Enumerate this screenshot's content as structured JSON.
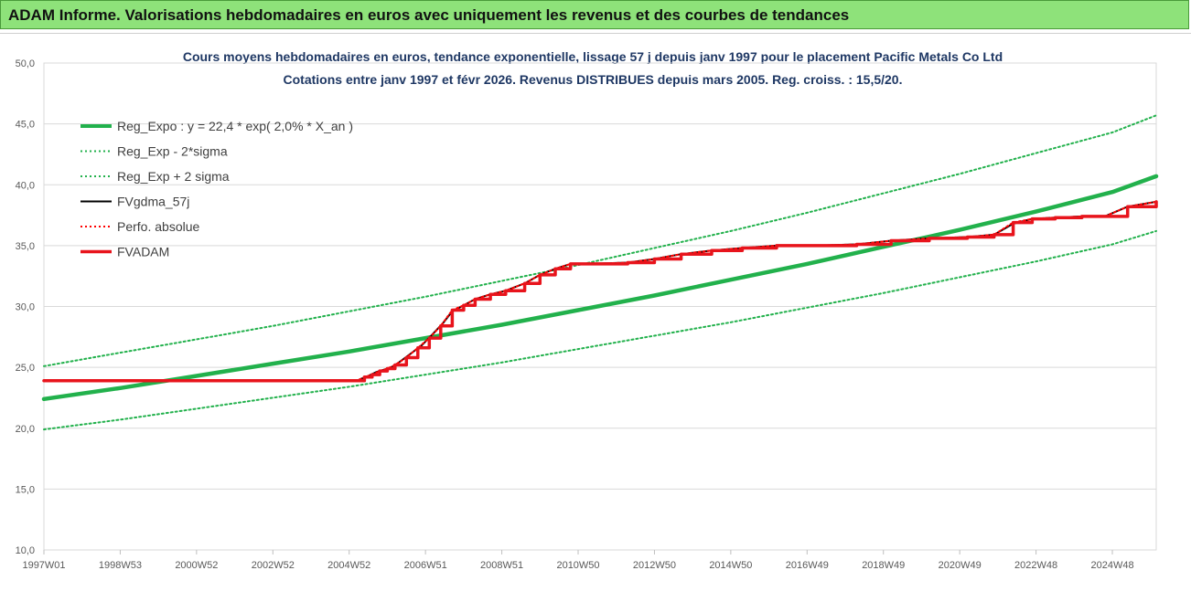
{
  "banner": {
    "title": "ADAM Informe. Valorisations hebdomadaires en euros avec uniquement les revenus et des courbes de tendances"
  },
  "chart_data": {
    "type": "line",
    "title_line1": "Cours moyens hebdomadaires en euros, tendance exponentielle, lissage 57 j depuis janv 1997 pour le placement Pacific Metals Co Ltd",
    "title_line2": "Cotations entre janv 1997 et févr 2026. Revenus DISTRIBUES depuis mars 2005. Reg. croiss. : 15,5/20.",
    "xlabel": "",
    "ylabel": "",
    "xlim": [
      1997.0,
      2026.15
    ],
    "ylim": [
      10,
      50
    ],
    "yticks": [
      "10,0",
      "15,0",
      "20,0",
      "25,0",
      "30,0",
      "35,0",
      "40,0",
      "45,0",
      "50,0"
    ],
    "xticks": [
      {
        "label": "1997W01",
        "x": 1997.0
      },
      {
        "label": "1998W53",
        "x": 1999.0
      },
      {
        "label": "2000W52",
        "x": 2001.0
      },
      {
        "label": "2002W52",
        "x": 2003.0
      },
      {
        "label": "2004W52",
        "x": 2005.0
      },
      {
        "label": "2006W51",
        "x": 2007.0
      },
      {
        "label": "2008W51",
        "x": 2009.0
      },
      {
        "label": "2010W50",
        "x": 2011.0
      },
      {
        "label": "2012W50",
        "x": 2013.0
      },
      {
        "label": "2014W50",
        "x": 2015.0
      },
      {
        "label": "2016W49",
        "x": 2017.0
      },
      {
        "label": "2018W49",
        "x": 2019.0
      },
      {
        "label": "2020W49",
        "x": 2021.0
      },
      {
        "label": "2022W48",
        "x": 2023.0
      },
      {
        "label": "2024W48",
        "x": 2025.0
      }
    ],
    "grid": "horizontal",
    "legend_position": "top-left",
    "series": [
      {
        "name": "Reg_Expo : y = 22,4 * exp( 2,0% *  X_an )",
        "color": "#22b14c",
        "style": "solid-thick",
        "x": [
          1997,
          1999,
          2001,
          2003,
          2005,
          2007,
          2009,
          2011,
          2013,
          2015,
          2017,
          2019,
          2021,
          2023,
          2025,
          2026.15
        ],
        "y": [
          22.4,
          23.3,
          24.3,
          25.3,
          26.3,
          27.4,
          28.5,
          29.7,
          30.9,
          32.2,
          33.5,
          34.9,
          36.3,
          37.8,
          39.4,
          40.7
        ]
      },
      {
        "name": "Reg_Exp - 2*sigma",
        "color": "#22b14c",
        "style": "dotted",
        "x": [
          1997,
          1999,
          2001,
          2003,
          2005,
          2007,
          2009,
          2011,
          2013,
          2015,
          2017,
          2019,
          2021,
          2023,
          2025,
          2026.15
        ],
        "y": [
          19.9,
          20.7,
          21.6,
          22.5,
          23.4,
          24.4,
          25.4,
          26.5,
          27.6,
          28.7,
          29.9,
          31.1,
          32.4,
          33.7,
          35.1,
          36.2
        ]
      },
      {
        "name": "Reg_Exp + 2 sigma",
        "color": "#22b14c",
        "style": "dotted",
        "x": [
          1997,
          1999,
          2001,
          2003,
          2005,
          2007,
          2009,
          2011,
          2013,
          2015,
          2017,
          2019,
          2021,
          2023,
          2025,
          2026.15
        ],
        "y": [
          25.1,
          26.2,
          27.3,
          28.4,
          29.6,
          30.8,
          32.1,
          33.4,
          34.8,
          36.2,
          37.7,
          39.3,
          40.9,
          42.6,
          44.3,
          45.7
        ]
      },
      {
        "name": "FVgdma_57j",
        "color": "#000000",
        "style": "solid",
        "x": [
          1997,
          2005.2,
          2005.35,
          2005.5,
          2005.7,
          2005.9,
          2006.1,
          2006.3,
          2006.6,
          2006.9,
          2007.15,
          2007.45,
          2007.7,
          2008.0,
          2008.3,
          2008.7,
          2009.1,
          2009.6,
          2010.0,
          2010.4,
          2010.8,
          2011.2,
          2012.3,
          2013.0,
          2013.7,
          2014.5,
          2015.3,
          2016.2,
          2017.2,
          2018.3,
          2019.2,
          2020.2,
          2021.2,
          2021.9,
          2022.4,
          2022.9,
          2023.5,
          2024.2,
          2024.8,
          2025.4,
          2026.15
        ],
        "y": [
          23.9,
          23.9,
          24.1,
          24.3,
          24.6,
          24.8,
          25.0,
          25.4,
          26.1,
          26.8,
          27.6,
          28.6,
          29.6,
          30.1,
          30.6,
          31.0,
          31.3,
          31.9,
          32.6,
          33.1,
          33.5,
          33.5,
          33.6,
          33.9,
          34.3,
          34.6,
          34.8,
          35.0,
          35.0,
          35.1,
          35.4,
          35.6,
          35.7,
          35.9,
          36.8,
          37.2,
          37.3,
          37.4,
          37.4,
          38.2,
          38.6
        ]
      },
      {
        "name": "Perfo. absolue",
        "color": "#ff0000",
        "style": "dotted",
        "x": [
          1997,
          2005.2,
          2005.4,
          2005.6,
          2005.8,
          2006.0,
          2006.2,
          2006.5,
          2006.8,
          2007.1,
          2007.4,
          2007.7,
          2008.0,
          2008.3,
          2008.7,
          2009.1,
          2009.6,
          2010.0,
          2010.4,
          2010.8,
          2011.2,
          2012.3,
          2013.0,
          2013.7,
          2014.5,
          2015.3,
          2016.2,
          2017.2,
          2018.3,
          2019.2,
          2020.2,
          2021.2,
          2021.9,
          2022.4,
          2022.9,
          2023.5,
          2024.2,
          2024.8,
          2025.4,
          2026.15
        ],
        "y": [
          23.9,
          23.9,
          24.2,
          24.4,
          24.7,
          24.9,
          25.2,
          25.8,
          26.6,
          27.4,
          28.4,
          29.7,
          30.1,
          30.6,
          31.0,
          31.3,
          31.9,
          32.6,
          33.1,
          33.5,
          33.5,
          33.6,
          33.9,
          34.3,
          34.6,
          34.8,
          35.0,
          35.0,
          35.1,
          35.4,
          35.6,
          35.7,
          35.9,
          36.9,
          37.2,
          37.3,
          37.4,
          37.4,
          38.2,
          38.6
        ]
      },
      {
        "name": "FVADAM",
        "color": "#e8141c",
        "style": "step-thick",
        "x": [
          1997,
          2005.2,
          2005.4,
          2005.6,
          2005.8,
          2006.0,
          2006.2,
          2006.5,
          2006.8,
          2007.1,
          2007.4,
          2007.7,
          2008.0,
          2008.3,
          2008.7,
          2009.1,
          2009.6,
          2010.0,
          2010.4,
          2010.8,
          2011.2,
          2012.3,
          2013.0,
          2013.7,
          2014.5,
          2015.3,
          2016.2,
          2017.2,
          2018.3,
          2019.2,
          2020.2,
          2021.2,
          2021.9,
          2022.4,
          2022.9,
          2023.5,
          2024.2,
          2024.8,
          2025.4,
          2026.15
        ],
        "y": [
          23.9,
          23.9,
          24.2,
          24.4,
          24.7,
          24.9,
          25.2,
          25.8,
          26.6,
          27.4,
          28.4,
          29.7,
          30.1,
          30.6,
          31.0,
          31.3,
          31.9,
          32.6,
          33.1,
          33.5,
          33.5,
          33.6,
          33.9,
          34.3,
          34.6,
          34.8,
          35.0,
          35.0,
          35.1,
          35.4,
          35.6,
          35.7,
          35.9,
          36.9,
          37.2,
          37.3,
          37.4,
          37.4,
          38.2,
          38.6
        ]
      }
    ]
  }
}
